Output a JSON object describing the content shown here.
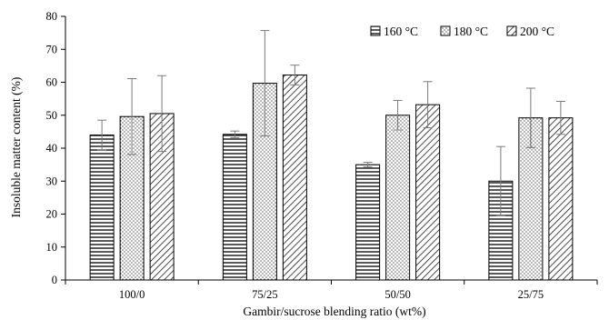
{
  "chart_data": {
    "type": "bar",
    "title": "",
    "xlabel": "Gambir/sucrose blending ratio (wt%)",
    "ylabel": "Insoluble matter content (%)",
    "ylim": [
      0,
      80
    ],
    "yticks": [
      0,
      10,
      20,
      30,
      40,
      50,
      60,
      70,
      80
    ],
    "categories": [
      "100/0",
      "75/25",
      "50/50",
      "25/75"
    ],
    "legend_position": "top-right",
    "grid": false,
    "series": [
      {
        "name": "160 °C",
        "pattern": "horizontal-lines",
        "values": [
          44,
          44.2,
          35,
          30
        ],
        "errors": [
          4.5,
          1,
          0.7,
          10.5
        ]
      },
      {
        "name": "180 °C",
        "pattern": "dots",
        "values": [
          49.6,
          59.7,
          50,
          49.2
        ],
        "errors": [
          11.5,
          16,
          4.5,
          9
        ]
      },
      {
        "name": "200 °C",
        "pattern": "diagonal-hatch",
        "values": [
          50.5,
          62.2,
          53.2,
          49.2
        ],
        "errors": [
          11.5,
          3,
          7,
          5
        ]
      }
    ]
  }
}
